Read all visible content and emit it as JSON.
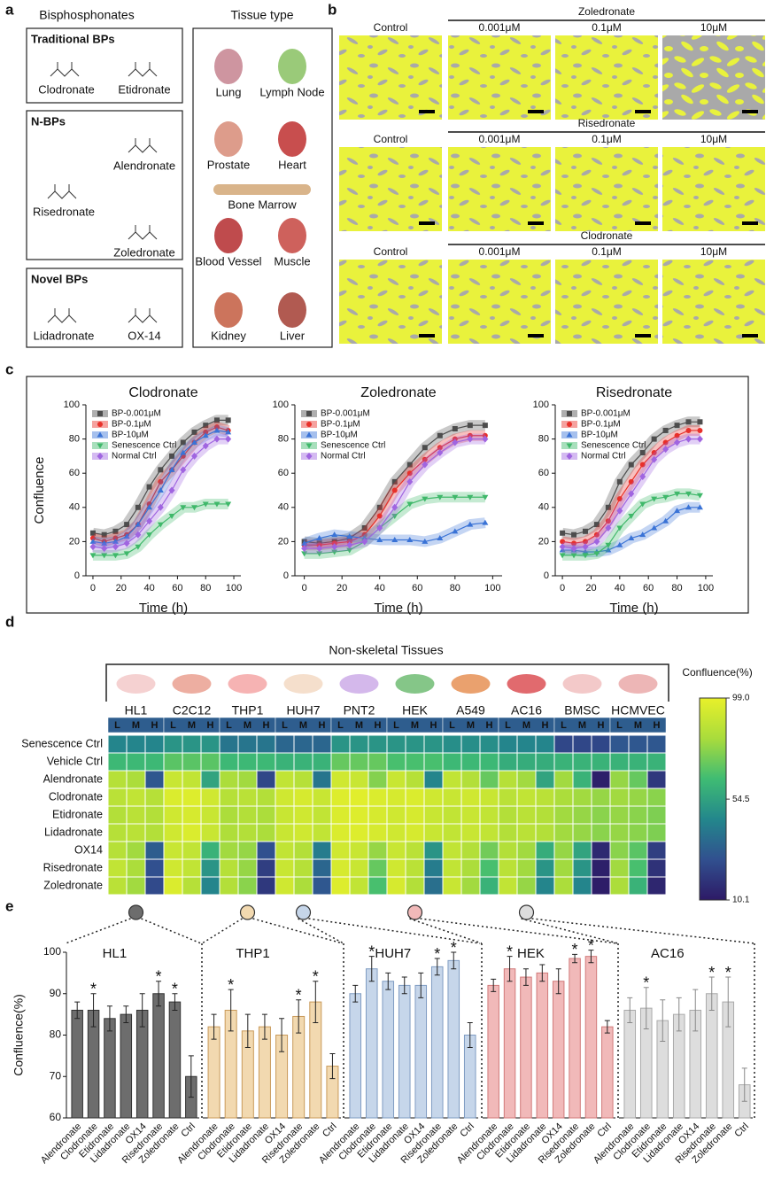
{
  "panel_labels": [
    "a",
    "b",
    "c",
    "d",
    "e"
  ],
  "panel_a": {
    "left_title": "Bisphosphonates",
    "right_title": "Tissue type",
    "groups": [
      {
        "title": "Traditional BPs",
        "drugs": [
          "Clodronate",
          "Etidronate"
        ]
      },
      {
        "title": "N-BPs",
        "drugs": [
          "Alendronate",
          "Risedronate",
          "Zoledronate"
        ]
      },
      {
        "title": "Novel BPs",
        "drugs": [
          "Lidadronate",
          "OX-14"
        ]
      }
    ],
    "tissues": [
      "Lung",
      "Lymph Node",
      "Prostate",
      "Heart",
      "Bone Marrow",
      "Blood Vessel",
      "Muscle",
      "Kidney",
      "Liver"
    ]
  },
  "panel_b": {
    "rows": [
      "Zoledronate",
      "Risedronate",
      "Clodronate"
    ],
    "columns": [
      "Control",
      "0.001μM",
      "0.1μM",
      "10μM"
    ]
  },
  "chart_data": [
    {
      "type": "line",
      "title": "Clodronate",
      "xlabel": "Time (h)",
      "ylabel": "Confluence",
      "legend": "upper left",
      "x": [
        0,
        8,
        16,
        24,
        32,
        40,
        48,
        56,
        64,
        72,
        80,
        88,
        96
      ],
      "xlim": [
        -5,
        105
      ],
      "ylim": [
        0,
        100
      ],
      "xticks": [
        0,
        20,
        40,
        60,
        80,
        100
      ],
      "yticks": [
        0,
        20,
        40,
        60,
        80,
        100
      ],
      "series": [
        {
          "name": "BP-0.001μM",
          "color": "#4d4d4d",
          "marker": "square",
          "values": [
            25,
            24,
            26,
            30,
            40,
            52,
            62,
            70,
            78,
            84,
            88,
            91,
            91
          ]
        },
        {
          "name": "BP-0.1μM",
          "color": "#e8302a",
          "marker": "circle",
          "values": [
            22,
            20,
            22,
            24,
            30,
            42,
            55,
            62,
            70,
            78,
            84,
            87,
            85
          ]
        },
        {
          "name": "BP-10μM",
          "color": "#3a73d6",
          "marker": "triangle-up",
          "values": [
            20,
            19,
            20,
            23,
            30,
            40,
            50,
            62,
            72,
            78,
            82,
            85,
            84
          ]
        },
        {
          "name": "Senescence Ctrl",
          "color": "#3fb86a",
          "marker": "triangle-down",
          "values": [
            12,
            12,
            12,
            13,
            17,
            24,
            30,
            35,
            40,
            40,
            42,
            42,
            42
          ]
        },
        {
          "name": "Normal Ctrl",
          "color": "#a065e0",
          "marker": "diamond",
          "values": [
            17,
            16,
            17,
            19,
            24,
            32,
            40,
            50,
            62,
            70,
            76,
            80,
            80
          ]
        }
      ]
    },
    {
      "type": "line",
      "title": "Zoledronate",
      "xlabel": "Time (h)",
      "legend": "upper left",
      "x": [
        0,
        8,
        16,
        24,
        32,
        40,
        48,
        56,
        64,
        72,
        80,
        88,
        96
      ],
      "xlim": [
        -5,
        105
      ],
      "ylim": [
        0,
        100
      ],
      "xticks": [
        0,
        20,
        40,
        60,
        80,
        100
      ],
      "yticks": [
        0,
        20,
        40,
        60,
        80,
        100
      ],
      "series": [
        {
          "name": "BP-0.001μM",
          "color": "#4d4d4d",
          "marker": "square",
          "values": [
            20,
            19,
            20,
            22,
            28,
            40,
            55,
            65,
            75,
            82,
            86,
            88,
            88
          ]
        },
        {
          "name": "BP-0.1μM",
          "color": "#e8302a",
          "marker": "circle",
          "values": [
            18,
            18,
            19,
            20,
            24,
            35,
            50,
            60,
            68,
            75,
            80,
            82,
            82
          ]
        },
        {
          "name": "BP-10μM",
          "color": "#3a73d6",
          "marker": "triangle-up",
          "values": [
            19,
            22,
            24,
            23,
            22,
            21,
            21,
            21,
            20,
            22,
            26,
            30,
            31
          ]
        },
        {
          "name": "Senescence Ctrl",
          "color": "#3fb86a",
          "marker": "triangle-down",
          "values": [
            13,
            13,
            14,
            15,
            20,
            28,
            35,
            42,
            45,
            46,
            46,
            46,
            46
          ]
        },
        {
          "name": "Normal Ctrl",
          "color": "#a065e0",
          "marker": "diamond",
          "values": [
            16,
            16,
            17,
            18,
            20,
            28,
            40,
            55,
            65,
            72,
            78,
            80,
            80
          ]
        }
      ]
    },
    {
      "type": "line",
      "title": "Risedronate",
      "xlabel": "Time (h)",
      "legend": "upper left",
      "x": [
        0,
        8,
        16,
        24,
        32,
        40,
        48,
        56,
        64,
        72,
        80,
        88,
        96
      ],
      "xlim": [
        -5,
        105
      ],
      "ylim": [
        0,
        100
      ],
      "xticks": [
        0,
        20,
        40,
        60,
        80,
        100
      ],
      "yticks": [
        0,
        20,
        40,
        60,
        80,
        100
      ],
      "series": [
        {
          "name": "BP-0.001μM",
          "color": "#4d4d4d",
          "marker": "square",
          "values": [
            25,
            24,
            26,
            30,
            40,
            55,
            65,
            72,
            80,
            85,
            88,
            90,
            90
          ]
        },
        {
          "name": "BP-0.1μM",
          "color": "#e8302a",
          "marker": "circle",
          "values": [
            20,
            19,
            20,
            24,
            32,
            45,
            55,
            65,
            72,
            78,
            82,
            85,
            85
          ]
        },
        {
          "name": "BP-10μM",
          "color": "#3a73d6",
          "marker": "triangle-up",
          "values": [
            15,
            15,
            14,
            14,
            15,
            18,
            22,
            24,
            28,
            32,
            38,
            40,
            40
          ]
        },
        {
          "name": "Senescence Ctrl",
          "color": "#3fb86a",
          "marker": "triangle-down",
          "values": [
            12,
            12,
            12,
            13,
            18,
            28,
            35,
            42,
            45,
            46,
            48,
            48,
            47
          ]
        },
        {
          "name": "Normal Ctrl",
          "color": "#a065e0",
          "marker": "diamond",
          "values": [
            17,
            16,
            17,
            20,
            28,
            38,
            48,
            58,
            68,
            74,
            78,
            80,
            80
          ]
        }
      ]
    },
    {
      "type": "heatmap",
      "title": "Non-skeletal Tissues",
      "colorbar_label": "Confluence(%)",
      "groups": [
        "HL1",
        "C2C12",
        "THP1",
        "HUH7",
        "PNT2",
        "HEK",
        "A549",
        "AC16",
        "BMSC",
        "HCMVEC"
      ],
      "subgroups": [
        "L",
        "M",
        "H"
      ],
      "rows": [
        "Senescence Ctrl",
        "Vehicle Ctrl",
        "Alendronate",
        "Clodronate",
        "Etidronate",
        "Lidadronate",
        "OX14",
        "Risedronate",
        "Zoledronate"
      ],
      "clim": [
        10.1,
        99
      ],
      "cticks": [
        10.1,
        54.5,
        {
          "value": 99,
          "label": "99.0"
        }
      ],
      "cmap": [
        "#2d1a66",
        "#31508f",
        "#23878c",
        "#3fbc73",
        "#a9dc3c",
        "#e8f02a"
      ],
      "values": [
        [
          45,
          45,
          45,
          50,
          50,
          50,
          40,
          40,
          40,
          35,
          35,
          35,
          50,
          50,
          50,
          50,
          50,
          50,
          48,
          48,
          48,
          45,
          45,
          45,
          25,
          25,
          25,
          30,
          30,
          30
        ],
        [
          62,
          62,
          62,
          68,
          68,
          68,
          62,
          62,
          62,
          60,
          60,
          60,
          70,
          70,
          70,
          65,
          65,
          65,
          62,
          62,
          62,
          58,
          58,
          58,
          60,
          60,
          60,
          60,
          60,
          60
        ],
        [
          85,
          82,
          30,
          90,
          88,
          55,
          82,
          80,
          25,
          88,
          85,
          40,
          92,
          90,
          75,
          90,
          85,
          45,
          88,
          84,
          70,
          85,
          80,
          55,
          80,
          60,
          12,
          78,
          70,
          20
        ],
        [
          86,
          88,
          85,
          95,
          96,
          92,
          85,
          86,
          84,
          92,
          94,
          90,
          96,
          97,
          95,
          94,
          95,
          92,
          90,
          92,
          90,
          86,
          88,
          86,
          82,
          80,
          78,
          80,
          78,
          76
        ],
        [
          84,
          86,
          84,
          92,
          94,
          90,
          82,
          84,
          82,
          90,
          92,
          88,
          95,
          96,
          94,
          92,
          94,
          90,
          88,
          90,
          88,
          84,
          86,
          84,
          80,
          78,
          76,
          78,
          76,
          74
        ],
        [
          85,
          86,
          84,
          92,
          95,
          90,
          83,
          84,
          82,
          90,
          92,
          88,
          95,
          96,
          94,
          92,
          94,
          90,
          88,
          90,
          88,
          84,
          86,
          84,
          80,
          78,
          76,
          78,
          76,
          74
        ],
        [
          85,
          80,
          32,
          90,
          88,
          60,
          80,
          78,
          28,
          88,
          84,
          42,
          92,
          90,
          78,
          90,
          86,
          50,
          88,
          84,
          72,
          84,
          80,
          58,
          78,
          55,
          15,
          76,
          68,
          22
        ],
        [
          88,
          82,
          28,
          92,
          88,
          50,
          85,
          78,
          22,
          90,
          85,
          35,
          94,
          90,
          70,
          92,
          86,
          42,
          88,
          82,
          65,
          86,
          80,
          50,
          80,
          50,
          12,
          80,
          65,
          18
        ],
        [
          86,
          80,
          26,
          95,
          85,
          45,
          84,
          76,
          20,
          92,
          82,
          30,
          96,
          88,
          65,
          94,
          84,
          38,
          90,
          80,
          60,
          88,
          78,
          45,
          82,
          45,
          11,
          82,
          60,
          14
        ]
      ]
    },
    {
      "type": "bar",
      "title": "HL1",
      "ylabel": "Confluence(%)",
      "color": "#6d6d6d",
      "edge_color": "#333333",
      "ylim": [
        60,
        100
      ],
      "yticks": [
        60,
        70,
        80,
        90,
        100
      ],
      "categories": [
        "Alendronate",
        "Clodronate",
        "Etidronate",
        "Lidadronate",
        "OX14",
        "Risedronate",
        "Zoledronate",
        "Ctrl"
      ],
      "values": [
        86,
        86,
        84,
        85,
        86,
        90,
        88,
        70
      ],
      "errors": [
        2,
        4,
        3,
        2,
        4,
        3,
        2,
        5
      ],
      "annotations": [
        null,
        "*",
        null,
        null,
        null,
        "*",
        "*",
        null
      ]
    },
    {
      "type": "bar",
      "title": "THP1",
      "color": "#f2d9b0",
      "edge_color": "#c99a5a",
      "ylim": [
        60,
        100
      ],
      "categories": [
        "Alendronate",
        "Clodronate",
        "Etidronate",
        "Lidadronate",
        "OX14",
        "Risedronate",
        "Zoledronate",
        "Ctrl"
      ],
      "values": [
        82,
        86,
        81,
        82,
        80,
        84.5,
        88,
        72.5
      ],
      "errors": [
        3,
        5,
        4,
        3,
        4,
        4,
        5,
        3
      ],
      "annotations": [
        null,
        "*",
        null,
        null,
        null,
        "*",
        "*",
        null
      ]
    },
    {
      "type": "bar",
      "title": "HUH7",
      "color": "#c6d6ea",
      "edge_color": "#7f9cc2",
      "ylim": [
        60,
        100
      ],
      "categories": [
        "Alendronate",
        "Clodronate",
        "Etidronate",
        "Lidadronate",
        "OX14",
        "Risedronate",
        "Zoledronate",
        "Ctrl"
      ],
      "values": [
        90,
        96,
        93,
        92,
        92,
        96.5,
        98,
        80
      ],
      "errors": [
        2,
        3,
        2,
        2,
        3,
        2,
        2,
        3
      ],
      "annotations": [
        null,
        "*",
        null,
        null,
        null,
        "*",
        "*",
        null
      ]
    },
    {
      "type": "bar",
      "title": "HEK",
      "color": "#f1b9b9",
      "edge_color": "#d17a7a",
      "ylim": [
        60,
        100
      ],
      "categories": [
        "Alendronate",
        "Clodronate",
        "Etidronate",
        "Lidadronate",
        "OX14",
        "Risedronate",
        "Zoledronate",
        "Ctrl"
      ],
      "values": [
        92,
        96,
        94,
        95,
        93,
        98.5,
        99,
        82
      ],
      "errors": [
        1.5,
        3,
        2,
        2,
        3,
        1,
        1.5,
        1.5
      ],
      "annotations": [
        null,
        "*",
        null,
        null,
        null,
        "*",
        "*",
        null
      ]
    },
    {
      "type": "bar",
      "title": "AC16",
      "color": "#dddddd",
      "edge_color": "#aaaaaa",
      "ylim": [
        60,
        100
      ],
      "categories": [
        "Alendronate",
        "Clodronate",
        "Etidronate",
        "Lidadronate",
        "OX14",
        "Risedronate",
        "Zoledronate",
        "Ctrl"
      ],
      "values": [
        86,
        86.5,
        83.5,
        85,
        86,
        90,
        88,
        68
      ],
      "errors": [
        3,
        5,
        5,
        4,
        5,
        4,
        6,
        4
      ],
      "annotations": [
        null,
        "*",
        null,
        null,
        null,
        "*",
        "*",
        null
      ]
    }
  ]
}
